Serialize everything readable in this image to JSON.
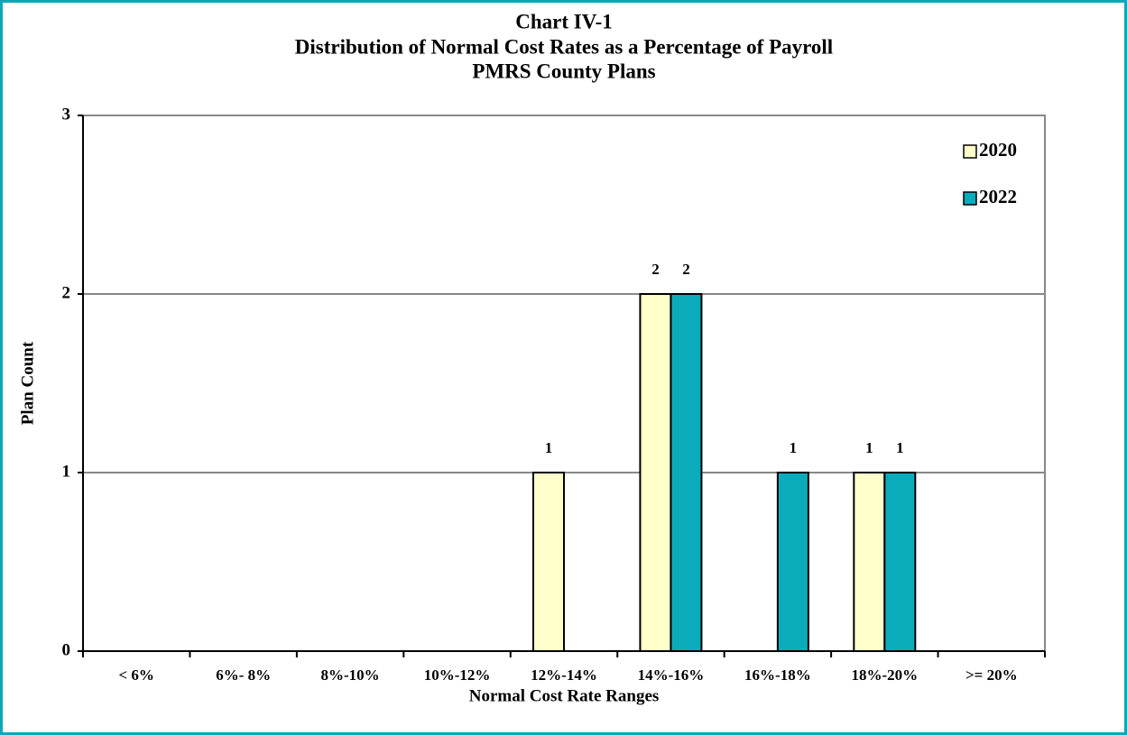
{
  "chart_data": {
    "type": "bar",
    "title": [
      "Chart IV-1",
      "Distribution of Normal Cost Rates as a Percentage of Payroll",
      "PMRS County Plans"
    ],
    "x_label": "Normal Cost Rate Ranges",
    "y_label": "Plan Count",
    "categories": [
      "< 6%",
      "6%- 8%",
      "8%-10%",
      "10%-12%",
      "12%-14%",
      "14%-16%",
      "16%-18%",
      "18%-20%",
      ">= 20%"
    ],
    "series": [
      {
        "name": "2020",
        "color": "#ffffcc",
        "values": [
          0,
          0,
          0,
          0,
          1,
          2,
          0,
          1,
          0
        ]
      },
      {
        "name": "2022",
        "color": "#0aacbc",
        "values": [
          0,
          0,
          0,
          0,
          0,
          2,
          1,
          1,
          0
        ]
      }
    ],
    "ylim": [
      0,
      3
    ],
    "yticks": [
      0,
      1,
      2,
      3
    ],
    "grid": true,
    "legend": "top-right"
  }
}
